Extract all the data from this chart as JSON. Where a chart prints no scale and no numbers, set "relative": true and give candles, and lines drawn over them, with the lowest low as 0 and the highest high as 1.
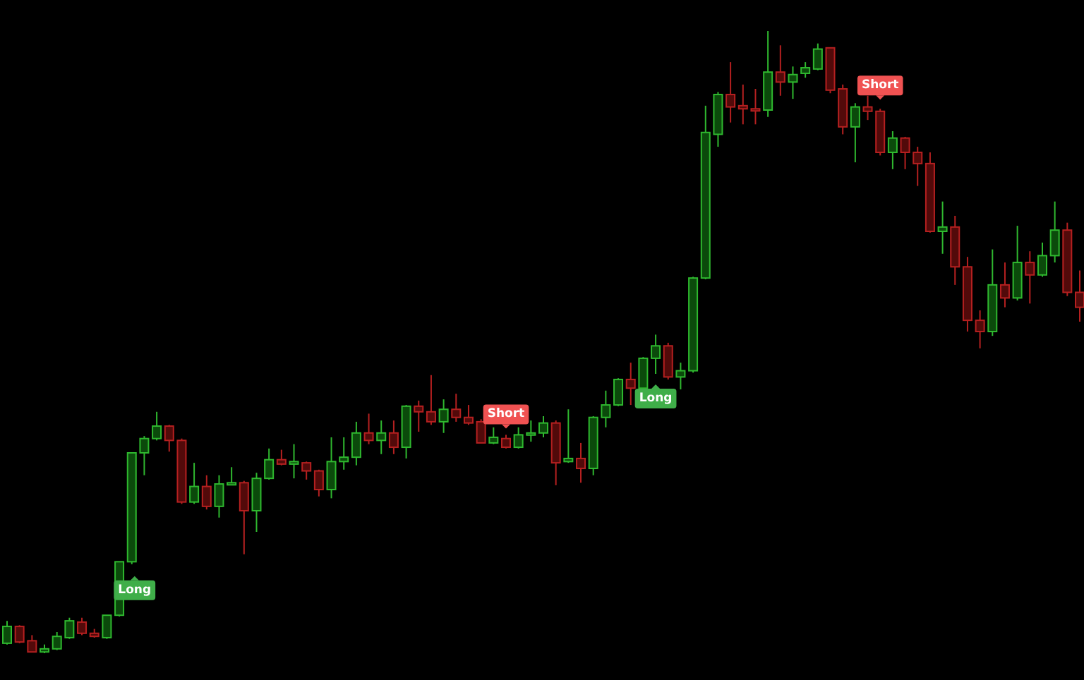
{
  "chart_data": {
    "type": "candlestick",
    "relative": true,
    "categories": [
      null,
      null,
      null,
      null,
      null,
      null,
      null,
      null,
      null,
      null,
      null,
      null,
      null,
      null,
      null,
      null,
      null,
      null,
      null,
      null,
      null,
      null,
      null,
      null,
      null,
      null,
      null,
      null,
      null,
      null,
      null,
      null,
      null,
      null,
      null,
      null,
      null,
      null,
      null,
      null,
      null,
      null,
      null,
      null,
      null,
      null,
      null,
      null,
      null,
      null,
      null,
      null,
      null,
      null,
      null,
      null,
      null,
      null,
      null,
      null,
      null,
      null,
      null,
      null,
      null,
      null,
      null,
      null,
      null,
      null,
      null,
      null,
      null,
      null,
      null,
      null,
      null,
      null,
      null,
      null,
      null,
      null,
      null,
      null,
      null,
      null,
      null
    ],
    "ohlc": [
      [
        0.016,
        0.052,
        0.014,
        0.043
      ],
      [
        0.043,
        0.045,
        0.016,
        0.018
      ],
      [
        0.02,
        0.029,
        0.002,
        0.002
      ],
      [
        0.002,
        0.014,
        0,
        0.007
      ],
      [
        0.007,
        0.034,
        0.005,
        0.027
      ],
      [
        0.025,
        0.057,
        0.023,
        0.052
      ],
      [
        0.05,
        0.057,
        0.029,
        0.032
      ],
      [
        0.032,
        0.039,
        0.025,
        0.027
      ],
      [
        0.025,
        0.061,
        0.023,
        0.061
      ],
      [
        0.061,
        0.147,
        0.059,
        0.147
      ],
      [
        0.147,
        0.322,
        0.143,
        0.322
      ],
      [
        0.322,
        0.349,
        0.286,
        0.345
      ],
      [
        0.345,
        0.388,
        0.342,
        0.365
      ],
      [
        0.365,
        0.367,
        0.324,
        0.342
      ],
      [
        0.342,
        0.345,
        0.24,
        0.243
      ],
      [
        0.243,
        0.306,
        0.24,
        0.268
      ],
      [
        0.268,
        0.286,
        0.231,
        0.236
      ],
      [
        0.236,
        0.286,
        0.218,
        0.272
      ],
      [
        0.272,
        0.299,
        0.27,
        0.274
      ],
      [
        0.274,
        0.277,
        0.159,
        0.229
      ],
      [
        0.229,
        0.29,
        0.195,
        0.281
      ],
      [
        0.281,
        0.329,
        0.279,
        0.311
      ],
      [
        0.311,
        0.327,
        0.302,
        0.304
      ],
      [
        0.304,
        0.336,
        0.281,
        0.308
      ],
      [
        0.306,
        0.308,
        0.279,
        0.293
      ],
      [
        0.293,
        0.295,
        0.252,
        0.263
      ],
      [
        0.263,
        0.347,
        0.249,
        0.308
      ],
      [
        0.308,
        0.347,
        0.295,
        0.315
      ],
      [
        0.315,
        0.372,
        0.302,
        0.354
      ],
      [
        0.354,
        0.385,
        0.336,
        0.342
      ],
      [
        0.342,
        0.374,
        0.32,
        0.354
      ],
      [
        0.354,
        0.374,
        0.32,
        0.331
      ],
      [
        0.331,
        0.399,
        0.313,
        0.397
      ],
      [
        0.397,
        0.406,
        0.356,
        0.388
      ],
      [
        0.388,
        0.447,
        0.367,
        0.372
      ],
      [
        0.372,
        0.408,
        0.354,
        0.392
      ],
      [
        0.392,
        0.417,
        0.372,
        0.379
      ],
      [
        0.379,
        0.399,
        0.367,
        0.37
      ],
      [
        0.372,
        0.376,
        0.338,
        0.338
      ],
      [
        0.338,
        0.363,
        0.336,
        0.347
      ],
      [
        0.345,
        0.351,
        0.329,
        0.331
      ],
      [
        0.331,
        0.363,
        0.329,
        0.351
      ],
      [
        0.351,
        0.374,
        0.34,
        0.354
      ],
      [
        0.354,
        0.381,
        0.347,
        0.37
      ],
      [
        0.37,
        0.374,
        0.27,
        0.306
      ],
      [
        0.308,
        0.392,
        0.306,
        0.313
      ],
      [
        0.313,
        0.338,
        0.274,
        0.297
      ],
      [
        0.297,
        0.381,
        0.286,
        0.379
      ],
      [
        0.379,
        0.422,
        0.363,
        0.399
      ],
      [
        0.399,
        0.442,
        0.397,
        0.44
      ],
      [
        0.44,
        0.467,
        0.399,
        0.426
      ],
      [
        0.426,
        0.476,
        0.424,
        0.474
      ],
      [
        0.474,
        0.512,
        0.449,
        0.494
      ],
      [
        0.494,
        0.499,
        0.44,
        0.444
      ],
      [
        0.444,
        0.467,
        0.424,
        0.454
      ],
      [
        0.454,
        0.605,
        0.451,
        0.603
      ],
      [
        0.603,
        0.88,
        0.601,
        0.837
      ],
      [
        0.834,
        0.902,
        0.814,
        0.898
      ],
      [
        0.898,
        0.95,
        0.853,
        0.878
      ],
      [
        0.88,
        0.914,
        0.85,
        0.875
      ],
      [
        0.875,
        0.907,
        0.85,
        0.873
      ],
      [
        0.873,
        1,
        0.862,
        0.934
      ],
      [
        0.934,
        0.977,
        0.896,
        0.918
      ],
      [
        0.918,
        0.943,
        0.891,
        0.93
      ],
      [
        0.932,
        0.95,
        0.925,
        0.941
      ],
      [
        0.939,
        0.98,
        0.937,
        0.971
      ],
      [
        0.973,
        0.973,
        0.9,
        0.905
      ],
      [
        0.907,
        0.914,
        0.834,
        0.846
      ],
      [
        0.846,
        0.884,
        0.789,
        0.878
      ],
      [
        0.878,
        0.896,
        0.857,
        0.871
      ],
      [
        0.871,
        0.875,
        0.8,
        0.805
      ],
      [
        0.805,
        0.839,
        0.778,
        0.828
      ],
      [
        0.828,
        0.83,
        0.778,
        0.805
      ],
      [
        0.805,
        0.814,
        0.751,
        0.787
      ],
      [
        0.787,
        0.805,
        0.676,
        0.678
      ],
      [
        0.678,
        0.726,
        0.642,
        0.685
      ],
      [
        0.685,
        0.703,
        0.592,
        0.621
      ],
      [
        0.621,
        0.637,
        0.517,
        0.535
      ],
      [
        0.535,
        0.551,
        0.49,
        0.517
      ],
      [
        0.517,
        0.649,
        0.51,
        0.592
      ],
      [
        0.592,
        0.628,
        0.556,
        0.571
      ],
      [
        0.571,
        0.687,
        0.567,
        0.628
      ],
      [
        0.628,
        0.646,
        0.562,
        0.608
      ],
      [
        0.608,
        0.66,
        0.605,
        0.639
      ],
      [
        0.639,
        0.726,
        0.628,
        0.68
      ],
      [
        0.68,
        0.692,
        0.574,
        0.58
      ],
      [
        0.58,
        0.615,
        0.533,
        0.556
      ]
    ],
    "annotations": [
      "Long",
      "Short",
      "Long",
      "Short"
    ]
  }
}
